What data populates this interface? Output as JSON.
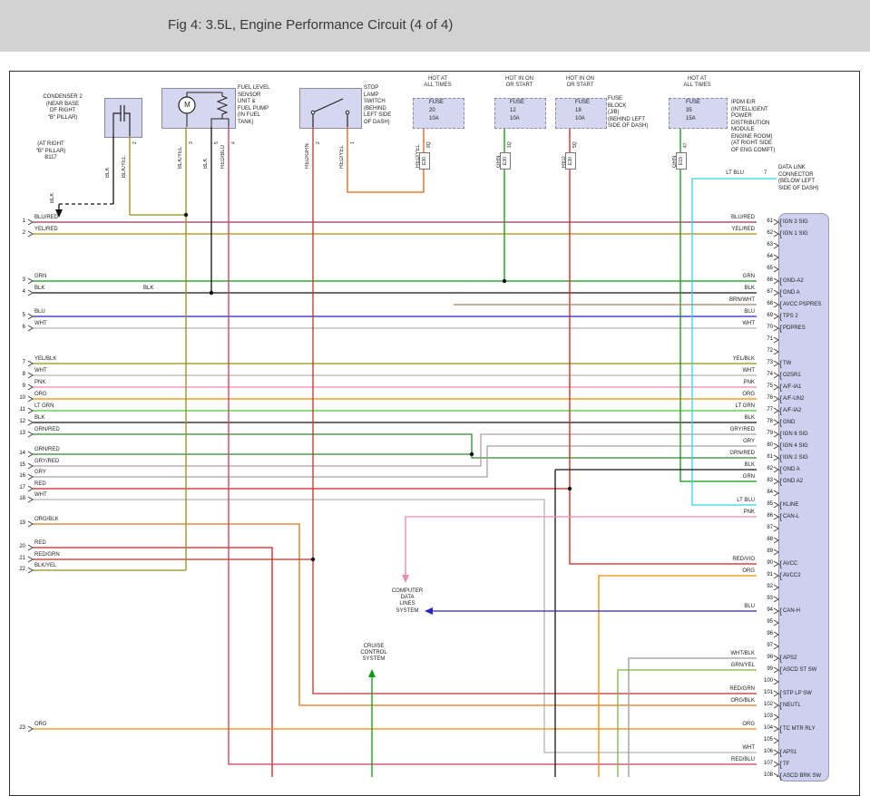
{
  "header": {
    "title": "Fig 4: 3.5L, Engine Performance Circuit (4 of 4)"
  },
  "palette": {
    "BLK": "#141414",
    "WHT": "#b4b4b4",
    "GRN": "#0f9b0f",
    "LT GRN": "#45cc2e",
    "GRN/RED": "#2e8b2e",
    "GRN/YEL": "#7ab33c",
    "YEL/RED": "#b68b00",
    "YEL/BLK": "#8f9400",
    "BLK/YEL": "#9c8a1e",
    "RED": "#d42020",
    "RED/GRN": "#bf3326",
    "RED/YEL": "#e55f13",
    "RED/BLU": "#cc3a5e",
    "RED/VIO": "#c92668",
    "ORG": "#f28a00",
    "ORG/BLK": "#dd7714",
    "PNK": "#ef87b5",
    "BLU": "#2525cc",
    "BLU/RED": "#97395f",
    "LT BLU": "#2fd5e8",
    "GRY": "#a3a3a3",
    "GRY/RED": "#ad9f9f",
    "BRN/WHT": "#a97d5c",
    "WHT/BLK": "#9b9b9b",
    "titlebar_bg": "#d2d2d2",
    "box_fill": "#d5d6f0",
    "box_border": "#8a8aa8",
    "ecm_fill": "#cdd0ee",
    "ink": "#222222"
  },
  "components": {
    "condenser": {
      "label": "CONDENSER 2\n(NEAR BASE\nOF RIGHT\n\"B\" PILLAR)",
      "wires": [
        {
          "color": "BLK"
        },
        {
          "color": "BLK/YEL",
          "pin": "2"
        }
      ]
    },
    "b117": {
      "label": "(AT RIGHT\n\"B\" PILLAR)\nB117",
      "wire": "BLK"
    },
    "fuel_pump": {
      "label": "FUEL LEVEL\nSENSOR\nUNIT &\nFUEL PUMP\n(IN FUEL\nTANK)",
      "motor": "M",
      "wires": [
        {
          "color": "BLK/YEL",
          "pin": "3"
        },
        {
          "color": "BLK",
          "pin": "5"
        },
        {
          "color": "RED/BLU",
          "pin": "4"
        }
      ]
    },
    "stop_lamp": {
      "label": "STOP\nLAMP\nSWITCH\n(BEHIND\nLEFT SIDE\nOF DASH)",
      "wires": [
        {
          "color": "RED/GRN",
          "pin": "2"
        },
        {
          "color": "RED/YEL",
          "pin": "1"
        }
      ]
    },
    "fuse_block": {
      "label": "FUSE\nBLOCK\n(J/B)\n(BEHIND LEFT\nSIDE OF DASH)"
    },
    "ipdm": {
      "label": "IPDM E/R\n(INTELLIGENT\nPOWER\nDISTRIBUTION\nMODULE\nENGINE ROOM)\n(AT RIGHT SIDE\nOF ENG COMPT)"
    },
    "dlc": {
      "label": "DATA LINK\nCONNECTOR\n(BELOW LEFT\nSIDE OF DASH)",
      "wire": "LT BLU",
      "pin": "7"
    }
  },
  "fuses": [
    {
      "header": "HOT AT\nALL TIMES",
      "name": "FUSE",
      "number": "20",
      "rating": "10A",
      "wire": "RED/YEL",
      "pin": "8Q",
      "conn": "E30"
    },
    {
      "header": "HOT IN ON\nOR START",
      "name": "FUSE",
      "number": "12",
      "rating": "10A",
      "wire": "GRN",
      "pin": "1Q",
      "conn": "E30"
    },
    {
      "header": "HOT IN ON\nOR START",
      "name": "FUSE",
      "number": "18",
      "rating": "10A",
      "wire": "RED",
      "pin": "5Q",
      "conn": "E30"
    },
    {
      "header": "HOT AT\nALL TIMES",
      "name": "FUSE",
      "number": "35",
      "rating": "15A",
      "wire": "GRN",
      "pin": "47",
      "conn": "E19"
    }
  ],
  "inline_labels": [
    {
      "text": "BLK"
    }
  ],
  "left_pins": [
    {
      "num": "1",
      "color": "BLU/RED"
    },
    {
      "num": "2",
      "color": "YEL/RED"
    },
    {
      "num": "3",
      "color": "GRN"
    },
    {
      "num": "4",
      "color": "BLK"
    },
    {
      "num": "5",
      "color": "BLU"
    },
    {
      "num": "6",
      "color": "WHT"
    },
    {
      "num": "7",
      "color": "YEL/BLK"
    },
    {
      "num": "8",
      "color": "WHT"
    },
    {
      "num": "9",
      "color": "PNK"
    },
    {
      "num": "10",
      "color": "ORG"
    },
    {
      "num": "11",
      "color": "LT GRN"
    },
    {
      "num": "12",
      "color": "BLK"
    },
    {
      "num": "13",
      "color": "GRN/RED"
    },
    {
      "num": "14",
      "color": "GRN/RED"
    },
    {
      "num": "15",
      "color": "GRY/RED"
    },
    {
      "num": "16",
      "color": "GRY"
    },
    {
      "num": "17",
      "color": "RED"
    },
    {
      "num": "18",
      "color": "WHT"
    },
    {
      "num": "19",
      "color": "ORG/BLK"
    },
    {
      "num": "20",
      "color": "RED"
    },
    {
      "num": "21",
      "color": "RED/GRN"
    },
    {
      "num": "22",
      "color": "BLK/YEL"
    },
    {
      "num": "23",
      "color": "ORG"
    }
  ],
  "ecm": {
    "pins": [
      {
        "num": "61",
        "color": "BLU/RED",
        "label": "IGN 3 SIG"
      },
      {
        "num": "62",
        "color": "YEL/RED",
        "label": "IGN 1 SIG"
      },
      {
        "num": "63",
        "color": "",
        "label": ""
      },
      {
        "num": "64",
        "color": "",
        "label": ""
      },
      {
        "num": "65",
        "color": "",
        "label": ""
      },
      {
        "num": "66",
        "color": "GRN",
        "label": "GND-A2"
      },
      {
        "num": "67",
        "color": "BLK",
        "label": "GND A"
      },
      {
        "num": "68",
        "color": "BRN/WHT",
        "label": "AVCC PSPRES"
      },
      {
        "num": "69",
        "color": "BLU",
        "label": "TPS 2"
      },
      {
        "num": "70",
        "color": "WHT",
        "label": "PDPRES"
      },
      {
        "num": "71",
        "color": "",
        "label": ""
      },
      {
        "num": "72",
        "color": "",
        "label": ""
      },
      {
        "num": "73",
        "color": "YEL/BLK",
        "label": "TW"
      },
      {
        "num": "74",
        "color": "WHT",
        "label": "O2SR1"
      },
      {
        "num": "75",
        "color": "PNK",
        "label": "A/F-IA1"
      },
      {
        "num": "76",
        "color": "ORG",
        "label": "A/F-UN2"
      },
      {
        "num": "77",
        "color": "LT GRN",
        "label": "A/F-IA2"
      },
      {
        "num": "78",
        "color": "BLK",
        "label": "GND"
      },
      {
        "num": "79",
        "color": "GRY/RED",
        "label": "IGN 6 SIG"
      },
      {
        "num": "80",
        "color": "GRY",
        "label": "IGN 4 SIG"
      },
      {
        "num": "81",
        "color": "GRN/RED",
        "label": "IGN 2 SIG"
      },
      {
        "num": "82",
        "color": "BLK",
        "label": "GND A"
      },
      {
        "num": "83",
        "color": "GRN",
        "label": "GND A2"
      },
      {
        "num": "84",
        "color": "",
        "label": ""
      },
      {
        "num": "85",
        "color": "LT BLU",
        "label": "KLINE"
      },
      {
        "num": "86",
        "color": "PNK",
        "label": "CAN-L"
      },
      {
        "num": "87",
        "color": "",
        "label": ""
      },
      {
        "num": "88",
        "color": "",
        "label": ""
      },
      {
        "num": "89",
        "color": "",
        "label": ""
      },
      {
        "num": "90",
        "color": "RED/VIO",
        "label": "AVCC"
      },
      {
        "num": "91",
        "color": "ORG",
        "label": "AVCC2"
      },
      {
        "num": "92",
        "color": "",
        "label": ""
      },
      {
        "num": "93",
        "color": "",
        "label": ""
      },
      {
        "num": "94",
        "color": "BLU",
        "label": "CAN-H"
      },
      {
        "num": "95",
        "color": "",
        "label": ""
      },
      {
        "num": "96",
        "color": "",
        "label": ""
      },
      {
        "num": "97",
        "color": "",
        "label": ""
      },
      {
        "num": "98",
        "color": "WHT/BLK",
        "label": "APS2"
      },
      {
        "num": "99",
        "color": "GRN/YEL",
        "label": "ASCD ST SW"
      },
      {
        "num": "100",
        "color": "",
        "label": ""
      },
      {
        "num": "101",
        "color": "RED/GRN",
        "label": "STP LP SW"
      },
      {
        "num": "102",
        "color": "ORG/BLK",
        "label": "NEUTL"
      },
      {
        "num": "103",
        "color": "",
        "label": ""
      },
      {
        "num": "104",
        "color": "ORG",
        "label": "TC MTR RLY"
      },
      {
        "num": "105",
        "color": "",
        "label": ""
      },
      {
        "num": "106",
        "color": "WHT",
        "label": "APS1"
      },
      {
        "num": "107",
        "color": "RED/BLU",
        "label": "TF"
      },
      {
        "num": "108",
        "color": "",
        "label": "ASCD BRK SW"
      }
    ]
  },
  "annotations": {
    "computer": "COMPUTER\nDATA\nLINES\nSYSTEM",
    "cruise": "CRUISE\nCONTROL\nSYSTEM"
  }
}
